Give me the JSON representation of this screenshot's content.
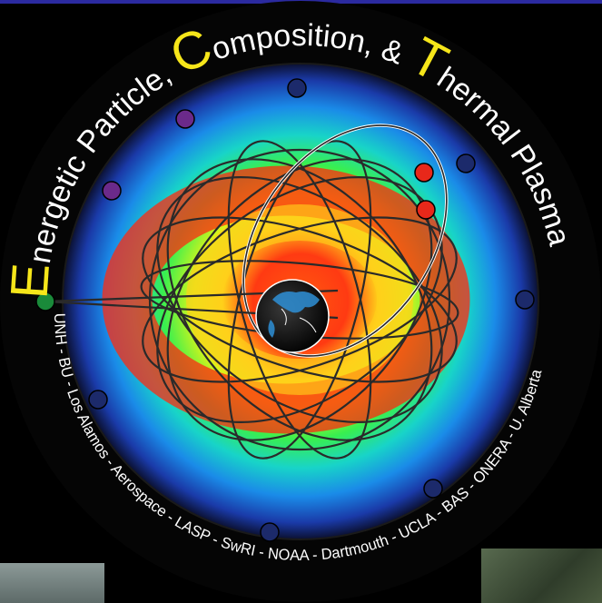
{
  "logo": {
    "title_lines": {
      "prefix_E": "E",
      "word1_rest": "nergetic Particle, ",
      "prefix_C": "C",
      "word2_rest": "omposition, & ",
      "prefix_T": "T",
      "word3_rest": "hermal Plasma"
    },
    "institutions": "UNH - BU - Los Alamos - Aerospace - LASP - SwRI - NOAA - Dartmouth - UCLA - BAS - ONERA - U. Alberta"
  },
  "colors": {
    "accent_yellow": "#f6e61a",
    "ring_dark": "#111111",
    "orbit_line": "#2a2a2a",
    "satellite_navy": "#1c2a6b",
    "satellite_purple": "#6b2a8a",
    "satellite_red": "#e8281a",
    "satellite_green": "#1a8a3a",
    "top_bar": "#2b2aa0"
  },
  "icons": {
    "earth": "earth-icon",
    "satellite": "satellite-icon"
  }
}
